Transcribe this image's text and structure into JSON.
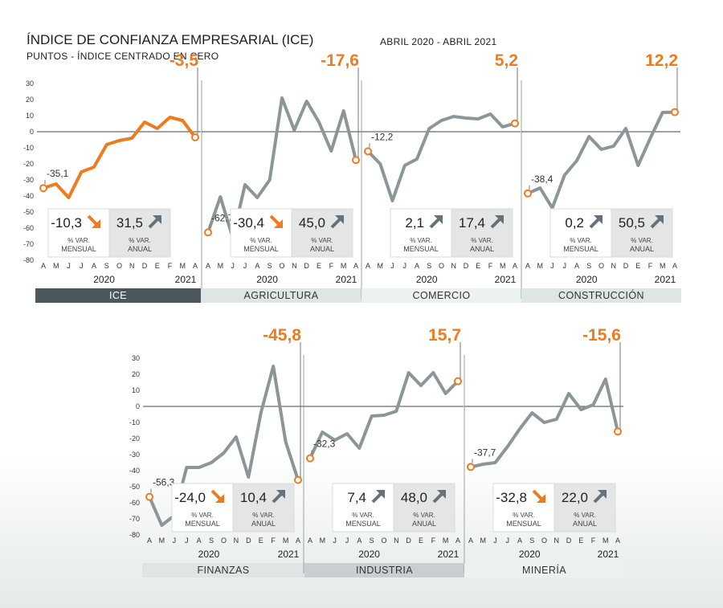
{
  "header": {
    "title": "ÍNDICE DE CONFIANZA EMPRESARIAL (ICE)",
    "subtitle": "PUNTOS - ÍNDICE CENTRADO EN CERO",
    "period": "ABRIL 2020 - ABRIL 2021"
  },
  "colors": {
    "orange": "#f07a1e",
    "gray_line": "#8c9698",
    "white_line": "#ffffff",
    "dark_tab": "#4d585e",
    "tab_light": "#dfe4e5",
    "tab_mid": "#c9cfd1",
    "tab_pale": "#eef1f2",
    "arrow_gray": "#66717a",
    "anual_box": "#e4e6e6"
  },
  "chart_data": [
    {
      "type": "line",
      "title": "ICE",
      "months": [
        "A",
        "M",
        "J",
        "J",
        "A",
        "S",
        "O",
        "N",
        "D",
        "E",
        "F",
        "M",
        "A"
      ],
      "years": [
        "2020",
        "2021"
      ],
      "values": [
        -35.1,
        -32.5,
        -41,
        -25,
        -22,
        -8,
        -5.5,
        -4,
        6,
        2,
        9,
        7,
        -3.5
      ],
      "first_label": "-35,1",
      "last_label": "-3,5",
      "mensual": "-10,3",
      "mensual_dir": "down",
      "anual": "31,5",
      "anual_dir": "up",
      "mensual_label": [
        "% VAR.",
        "MENSUAL"
      ],
      "anual_label": [
        "% VAR.",
        "ANUAL"
      ],
      "ylim": [
        -80,
        30
      ]
    },
    {
      "type": "line",
      "title": "AGRICULTURA",
      "months": [
        "A",
        "M",
        "J",
        "J",
        "A",
        "S",
        "O",
        "N",
        "D",
        "E",
        "F",
        "M",
        "A"
      ],
      "years": [
        "2020",
        "2021"
      ],
      "values": [
        -62.7,
        -40.5,
        -66,
        -33,
        -41,
        -30,
        21,
        1,
        19,
        6,
        -12,
        13,
        -17.6
      ],
      "first_label": "-62,7",
      "last_label": "-17,6",
      "mensual": "-30,4",
      "mensual_dir": "down",
      "anual": "45,0",
      "anual_dir": "up",
      "mensual_label": [
        "% VAR.",
        "MENSUAL"
      ],
      "anual_label": [
        "% VAR.",
        "ANUAL"
      ],
      "ylim": [
        -80,
        30
      ]
    },
    {
      "type": "line",
      "title": "COMERCIO",
      "months": [
        "A",
        "M",
        "J",
        "J",
        "A",
        "S",
        "O",
        "N",
        "D",
        "E",
        "F",
        "M",
        "A"
      ],
      "years": [
        "2020",
        "2021"
      ],
      "values": [
        -12.2,
        -20,
        -43,
        -21,
        -17,
        2,
        7,
        9.5,
        8.5,
        8,
        11,
        3,
        5.2
      ],
      "first_label": "-12,2",
      "last_label": "5,2",
      "mensual": "2,1",
      "mensual_dir": "up",
      "anual": "17,4",
      "anual_dir": "up",
      "mensual_label": [
        "% VAR.",
        "MENSUAL"
      ],
      "anual_label": [
        "% VAR.",
        "ANUAL"
      ],
      "ylim": [
        -80,
        30
      ]
    },
    {
      "type": "line",
      "title": "CONSTRUCCIÓN",
      "months": [
        "A",
        "M",
        "J",
        "J",
        "A",
        "S",
        "O",
        "N",
        "D",
        "E",
        "F",
        "M",
        "A"
      ],
      "years": [
        "2020",
        "2021"
      ],
      "values": [
        -38.4,
        -35,
        -47.5,
        -27,
        -18,
        -3,
        -11,
        -9,
        2,
        -21,
        -4,
        12,
        12.2
      ],
      "first_label": "-38,4",
      "last_label": "12,2",
      "mensual": "0,2",
      "mensual_dir": "up",
      "anual": "50,5",
      "anual_dir": "up",
      "mensual_label": [
        "% VAR.",
        "MENSUAL"
      ],
      "anual_label": [
        "% VAR.",
        "ANUAL"
      ],
      "ylim": [
        -80,
        30
      ]
    },
    {
      "type": "line",
      "title": "FINANZAS",
      "months": [
        "A",
        "M",
        "J",
        "J",
        "A",
        "S",
        "O",
        "N",
        "D",
        "E",
        "F",
        "M",
        "A"
      ],
      "years": [
        "2020",
        "2021"
      ],
      "values": [
        -56.3,
        -74,
        -68,
        -38,
        -38,
        -35,
        -29,
        -19,
        -44,
        -4,
        25,
        -22,
        -45.8
      ],
      "first_label": "-56,3",
      "last_label": "-45,8",
      "mensual": "-24,0",
      "mensual_dir": "down",
      "anual": "10,4",
      "anual_dir": "up",
      "mensual_label": [
        "% VAR.",
        "MENSUAL"
      ],
      "anual_label": [
        "% VAR.",
        "ANUAL"
      ],
      "ylim": [
        -80,
        30
      ]
    },
    {
      "type": "line",
      "title": "INDUSTRIA",
      "months": [
        "A",
        "M",
        "J",
        "J",
        "A",
        "S",
        "O",
        "N",
        "D",
        "E",
        "F",
        "M",
        "A"
      ],
      "years": [
        "2020",
        "2021"
      ],
      "values": [
        -32.3,
        -16,
        -21,
        -17,
        -26,
        -6,
        -5.5,
        -3,
        21,
        13,
        21,
        8,
        15.7
      ],
      "first_label": "-32,3",
      "last_label": "15,7",
      "mensual": "7,4",
      "mensual_dir": "up",
      "anual": "48,0",
      "anual_dir": "up",
      "mensual_label": [
        "% VAR.",
        "MENSUAL"
      ],
      "anual_label": [
        "% VAR.",
        "ANUAL"
      ],
      "ylim": [
        -80,
        30
      ]
    },
    {
      "type": "line",
      "title": "MINERÍA",
      "months": [
        "A",
        "M",
        "J",
        "J",
        "A",
        "S",
        "O",
        "N",
        "D",
        "E",
        "F",
        "M",
        "A"
      ],
      "years": [
        "2020",
        "2021"
      ],
      "values": [
        -37.7,
        -36,
        -35,
        -25,
        -14,
        -4,
        -10,
        -8,
        8,
        -2,
        1,
        17,
        -15.6
      ],
      "first_label": "-37,7",
      "last_label": "-15,6",
      "mensual": "-32,8",
      "mensual_dir": "down",
      "anual": "22,0",
      "anual_dir": "up",
      "mensual_label": [
        "% VAR.",
        "MENSUAL"
      ],
      "anual_label": [
        "% VAR.",
        "ANUAL"
      ],
      "ylim": [
        -80,
        30
      ]
    }
  ],
  "axis": {
    "ticks": [
      "30",
      "20",
      "10",
      "0",
      "-10",
      "-20",
      "-30",
      "-40",
      "-50",
      "-60",
      "-70",
      "-80"
    ]
  }
}
